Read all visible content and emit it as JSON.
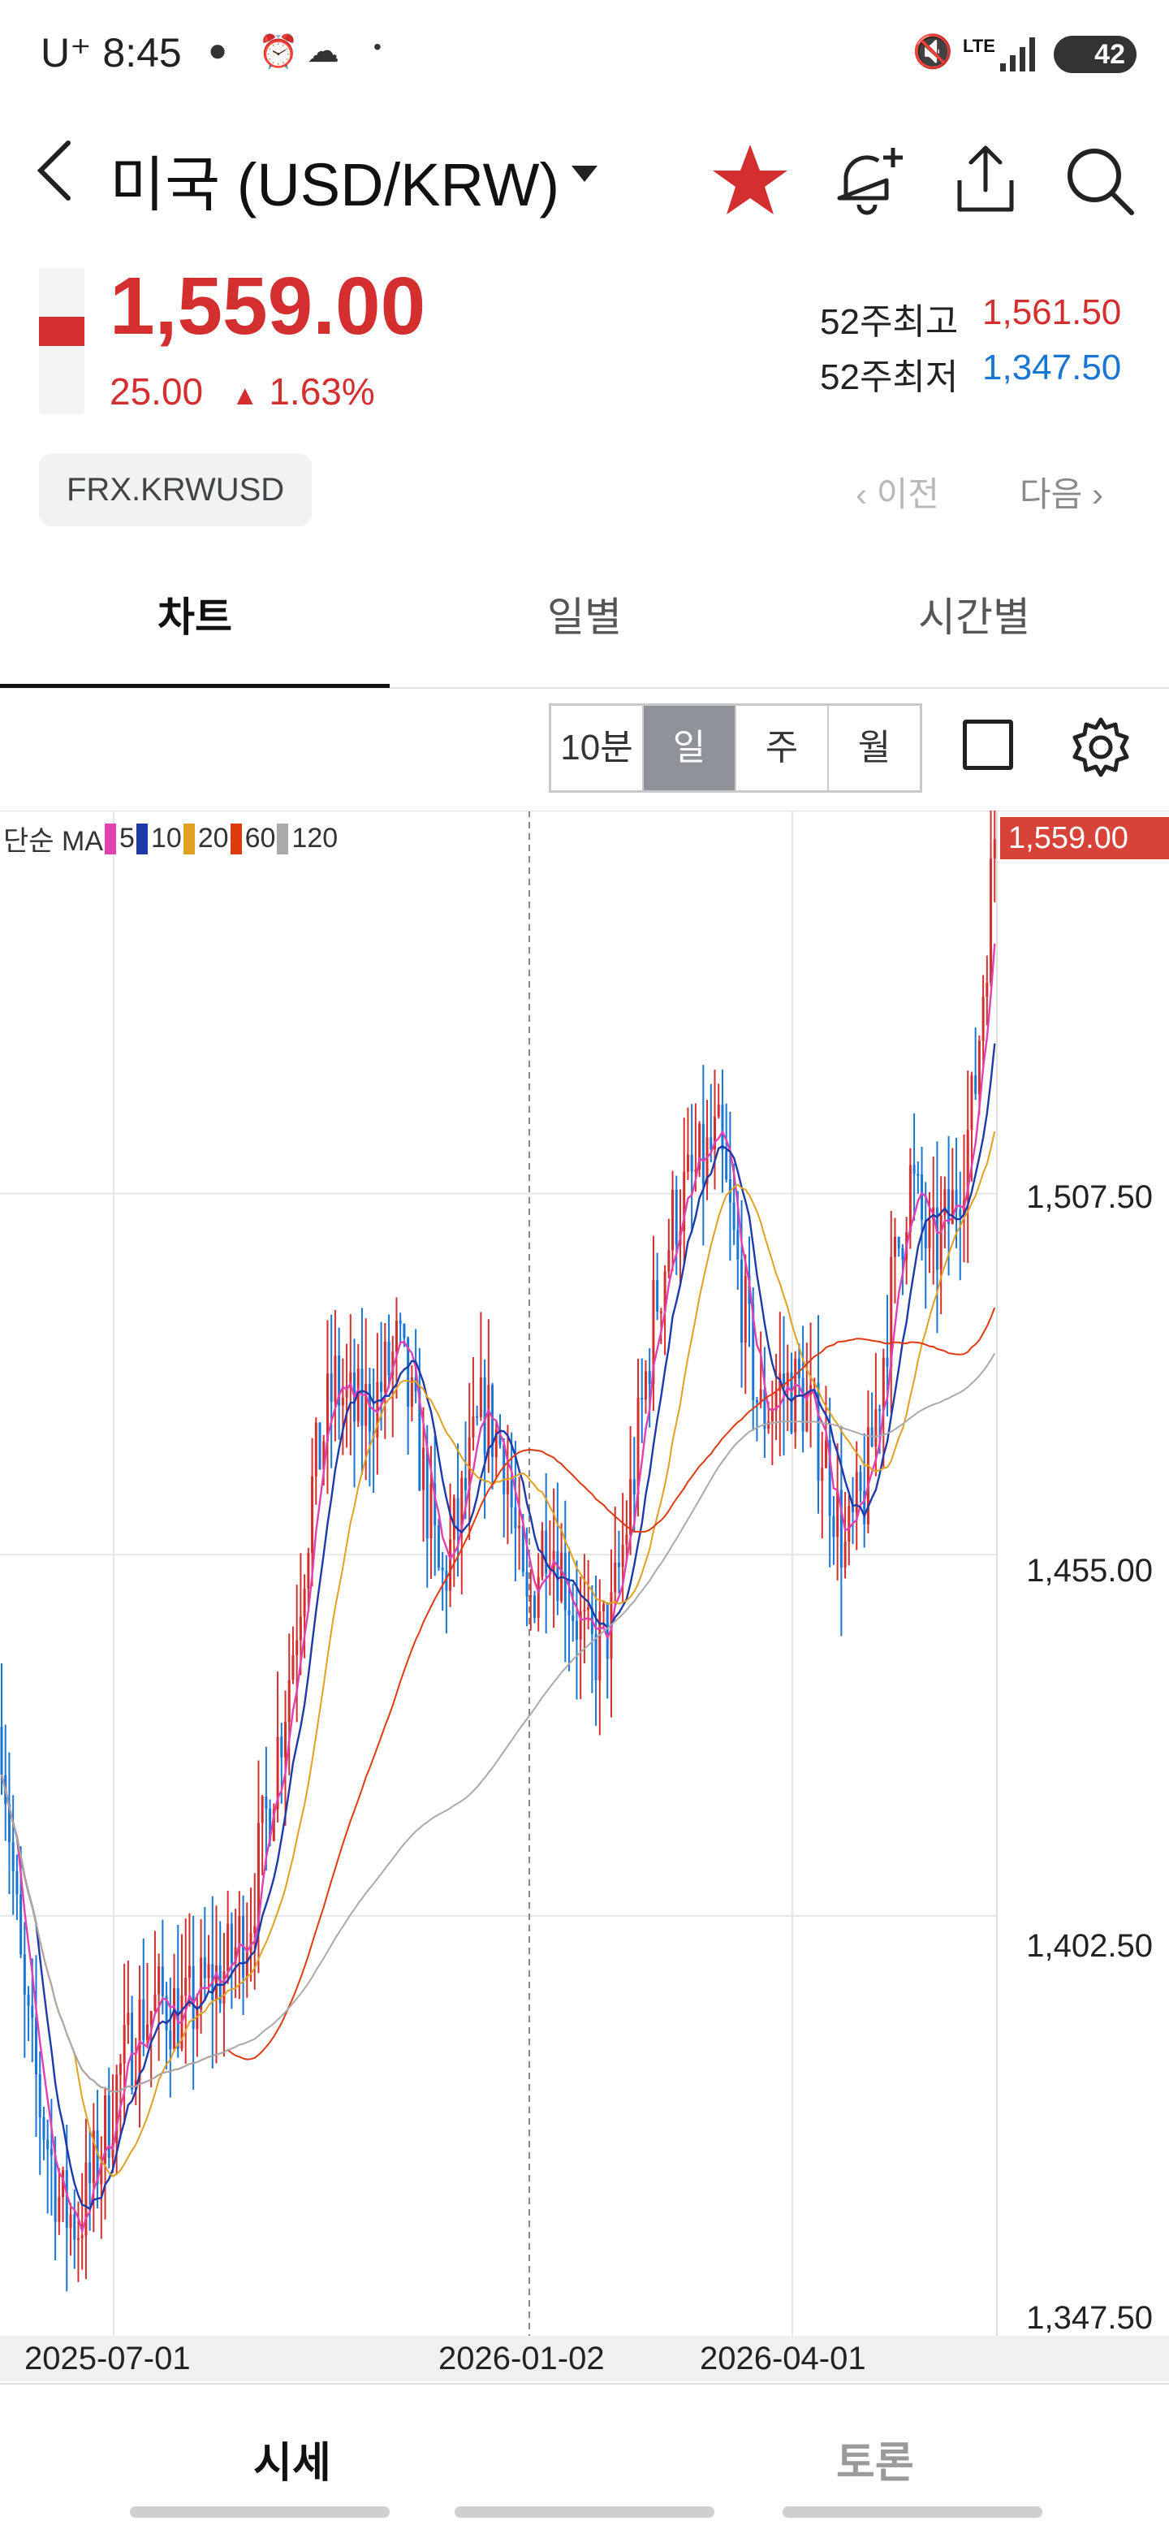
{
  "status_bar": {
    "carrier": "U⁺",
    "time": "8:45",
    "battery": "42",
    "network": "LTE"
  },
  "header": {
    "title": "미국 (USD/KRW)"
  },
  "quote": {
    "price": "1,559.00",
    "change": "25.00",
    "change_pct": "1.63%",
    "high_label": "52주최고",
    "high_value": "1,561.50",
    "low_label": "52주최저",
    "low_value": "1,347.50",
    "code": "FRX.KRWUSD",
    "prev": "이전",
    "next": "다음"
  },
  "tabs": [
    "차트",
    "일별",
    "시간별"
  ],
  "periods": [
    "10분",
    "일",
    "주",
    "월"
  ],
  "selected_period": "일",
  "legend": {
    "prefix": "단순 MA",
    "items": [
      "5",
      "10",
      "20",
      "60",
      "120"
    ],
    "colors": [
      "#e040b0",
      "#1e3aa8",
      "#e0a020",
      "#e03a10",
      "#aaaaaa"
    ]
  },
  "colors": {
    "up": "#d32f2f",
    "down": "#1976d2",
    "price_tag": "#d84339"
  },
  "bottom_tabs": [
    "시세",
    "토론"
  ],
  "chart_data": {
    "type": "candlestick",
    "y_ticks": [
      "1,559.00",
      "1,507.50",
      "1,455.00",
      "1,402.50",
      "1,347.50"
    ],
    "x_ticks": [
      "2025-07-01",
      "2026-01-02",
      "2026-04-01"
    ],
    "ylim": [
      1345,
      1562
    ],
    "last_price": 1559.0,
    "close_path": [
      [
        0,
        1430
      ],
      [
        10,
        1390
      ],
      [
        18,
        1375
      ],
      [
        28,
        1360
      ],
      [
        36,
        1358
      ],
      [
        46,
        1368
      ],
      [
        56,
        1380
      ],
      [
        66,
        1388
      ],
      [
        76,
        1390
      ],
      [
        86,
        1388
      ],
      [
        96,
        1392
      ],
      [
        106,
        1395
      ],
      [
        116,
        1402
      ],
      [
        126,
        1420
      ],
      [
        136,
        1440
      ],
      [
        146,
        1465
      ],
      [
        156,
        1480
      ],
      [
        166,
        1475
      ],
      [
        176,
        1478
      ],
      [
        186,
        1485
      ],
      [
        196,
        1470
      ],
      [
        206,
        1450
      ],
      [
        216,
        1462
      ],
      [
        226,
        1476
      ],
      [
        236,
        1470
      ],
      [
        246,
        1445
      ],
      [
        256,
        1460
      ],
      [
        266,
        1450
      ],
      [
        276,
        1440
      ],
      [
        286,
        1445
      ],
      [
        296,
        1465
      ],
      [
        306,
        1490
      ],
      [
        316,
        1505
      ],
      [
        326,
        1510
      ],
      [
        336,
        1515
      ],
      [
        346,
        1495
      ],
      [
        356,
        1475
      ],
      [
        366,
        1480
      ],
      [
        376,
        1478
      ],
      [
        386,
        1470
      ],
      [
        396,
        1455
      ],
      [
        406,
        1465
      ],
      [
        416,
        1490
      ],
      [
        426,
        1510
      ],
      [
        436,
        1498
      ],
      [
        446,
        1505
      ],
      [
        456,
        1520
      ],
      [
        466,
        1559
      ]
    ]
  }
}
